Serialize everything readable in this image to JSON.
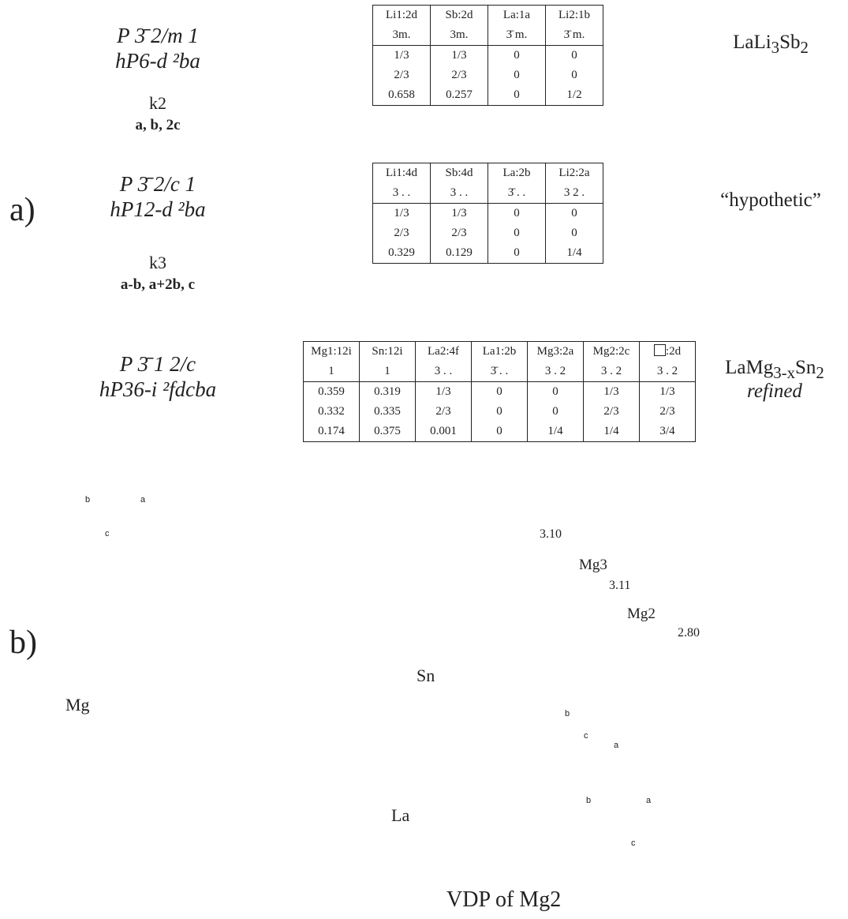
{
  "panel_labels": {
    "a": "a)",
    "b": "b)"
  },
  "group_tree": {
    "level1": {
      "symbol": "P 3̄ 2/m 1",
      "pearson": "hP6-d ²ba"
    },
    "step1": {
      "index": "k2",
      "basis": "a, b, 2c"
    },
    "level2": {
      "symbol": "P 3̄ 2/c 1",
      "pearson": "hP12-d ²ba"
    },
    "step2": {
      "index": "k3",
      "basis": "a-b, a+2b, c"
    },
    "level3": {
      "symbol": "P 3̄ 1 2/c",
      "pearson": "hP36-i ²fdcba"
    }
  },
  "table1": {
    "label_html": "LaLi<sub>3</sub>Sb<sub>2</sub>",
    "columns": [
      {
        "site": "Li1:2d",
        "sym": "3m.",
        "x": "1/3",
        "y": "2/3",
        "z": "0.658"
      },
      {
        "site": "Sb:2d",
        "sym": "3m.",
        "x": "1/3",
        "y": "2/3",
        "z": "0.257"
      },
      {
        "site": "La:1a",
        "sym": "3̄ m.",
        "x": "0",
        "y": "0",
        "z": "0"
      },
      {
        "site": "Li2:1b",
        "sym": "3̄ m.",
        "x": "0",
        "y": "0",
        "z": "1/2"
      }
    ]
  },
  "table2": {
    "label": "“hypothetic”",
    "columns": [
      {
        "site": "Li1:4d",
        "sym": "3 . .",
        "x": "1/3",
        "y": "2/3",
        "z": "0.329"
      },
      {
        "site": "Sb:4d",
        "sym": "3 . .",
        "x": "1/3",
        "y": "2/3",
        "z": "0.129"
      },
      {
        "site": "La:2b",
        "sym": "3̄ . .",
        "x": "0",
        "y": "0",
        "z": "0"
      },
      {
        "site": "Li2:2a",
        "sym": "3 2 .",
        "x": "0",
        "y": "0",
        "z": "1/4"
      }
    ]
  },
  "table3": {
    "label_html": "LaMg<sub>3-x</sub>Sn<sub>2</sub>",
    "label2": "refined",
    "columns": [
      {
        "site": "Mg1:12i",
        "sym": "1",
        "x": "0.359",
        "y": "0.332",
        "z": "0.174"
      },
      {
        "site": "Sn:12i",
        "sym": "1",
        "x": "0.319",
        "y": "0.335",
        "z": "0.375"
      },
      {
        "site": "La2:4f",
        "sym": "3 . .",
        "x": "1/3",
        "y": "2/3",
        "z": "0.001"
      },
      {
        "site": "La1:2b",
        "sym": "3̄ . .",
        "x": "0",
        "y": "0",
        "z": "0"
      },
      {
        "site": "Mg3:2a",
        "sym": "3 . 2",
        "x": "0",
        "y": "0",
        "z": "1/4"
      },
      {
        "site": "Mg2:2c",
        "sym": "3 . 2",
        "x": "1/3",
        "y": "2/3",
        "z": "1/4"
      },
      {
        "site": ":2d",
        "sym": "3 . 2",
        "x": "1/3",
        "y": "2/3",
        "z": "3/4",
        "vacancy": true
      }
    ]
  },
  "structure_labels": {
    "mg": "Mg",
    "sn": "Sn",
    "la": "La",
    "mg3": "Mg3",
    "mg2": "Mg2",
    "d1": "3.10",
    "d2": "3.11",
    "d3": "2.80",
    "vdp": "VDP of Mg2"
  },
  "axes": {
    "a": "a",
    "b": "b",
    "c": "c"
  },
  "colors": {
    "mg": "#7a0d0d",
    "sn": "#f08c1e",
    "la": "#1e8a1e",
    "bond_red": "#c0392b"
  }
}
